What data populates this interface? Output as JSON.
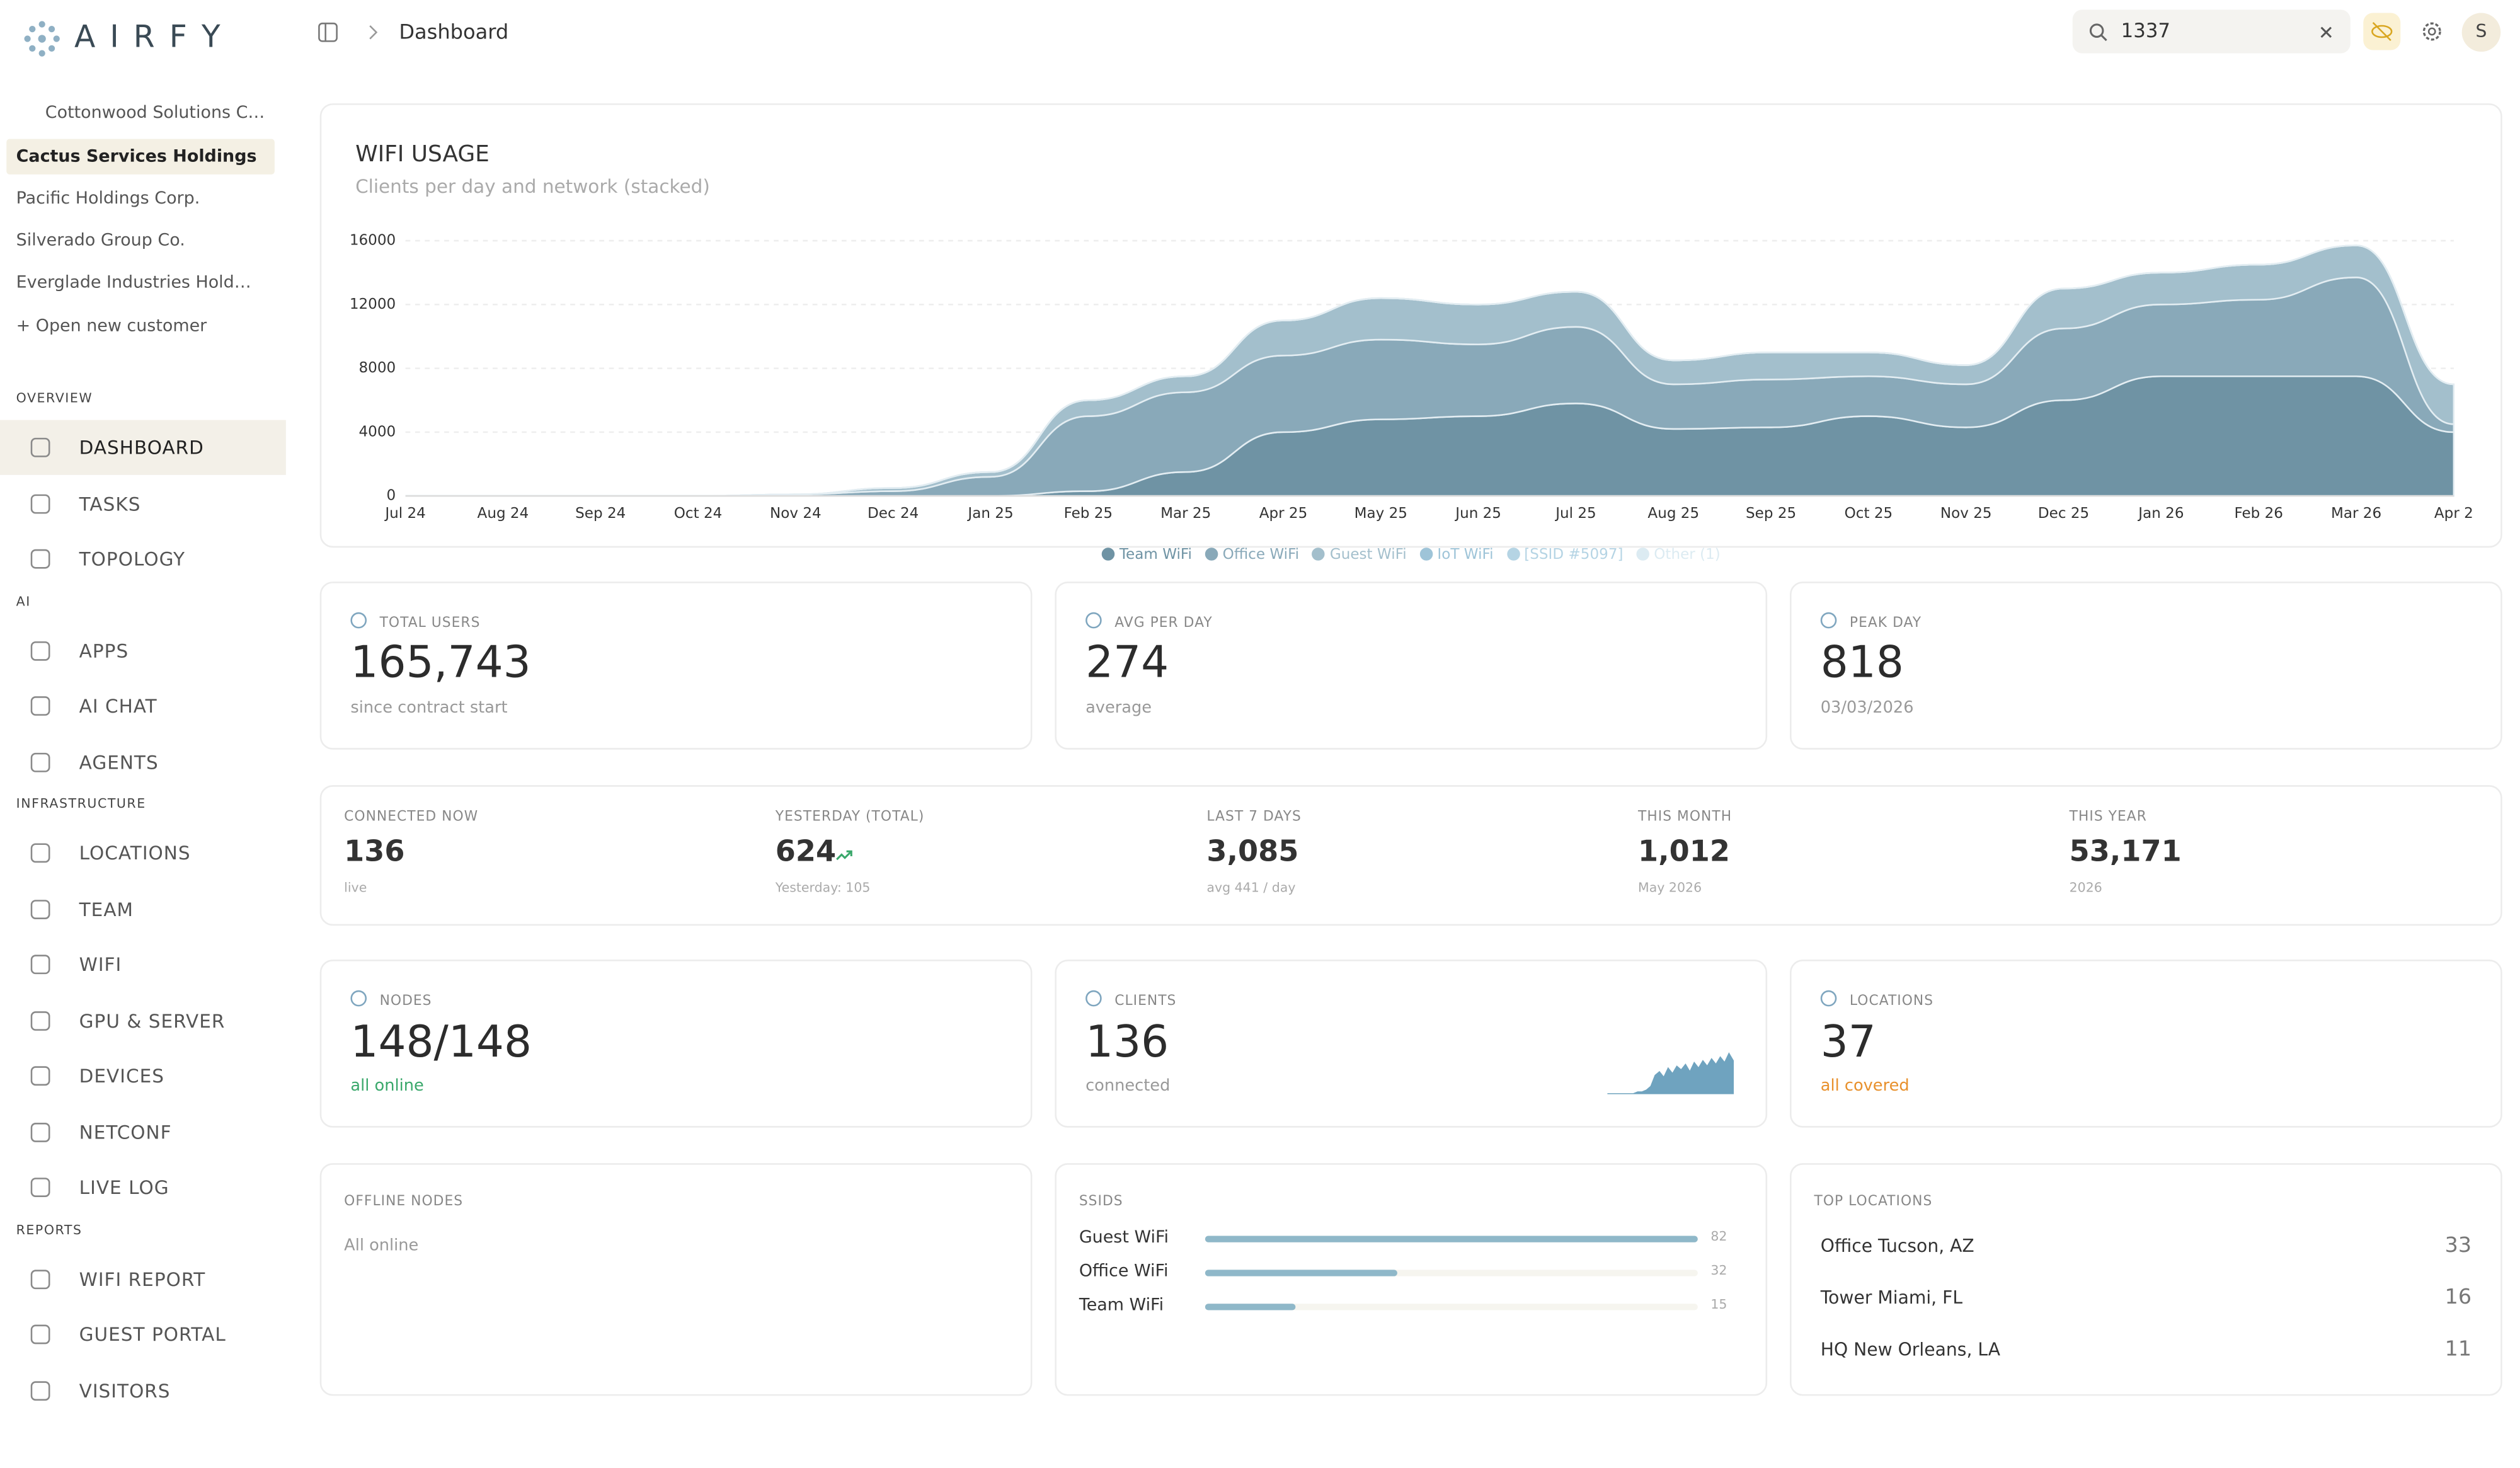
{
  "sidebar": {
    "brand": "AIRFY",
    "customers": [
      "Cottonwood Solutions C…",
      "Cactus Services Holdings",
      "Pacific Holdings Corp.",
      "Silverado Group Co.",
      "Everglade Industries Hold…"
    ],
    "open_customer": "+ Open new customer",
    "sections": [
      {
        "title": "OVERVIEW",
        "items": [
          "DASHBOARD",
          "TASKS",
          "TOPOLOGY"
        ]
      },
      {
        "title": "AI",
        "items": [
          "APPS",
          "AI CHAT",
          "AGENTS"
        ]
      },
      {
        "title": "INFRASTRUCTURE",
        "items": [
          "LOCATIONS",
          "TEAM",
          "WIFI",
          "GPU & SERVER",
          "DEVICES",
          "NETCONF",
          "LIVE LOG"
        ]
      },
      {
        "title": "REPORTS",
        "items": [
          "WIFI REPORT",
          "GUEST PORTAL",
          "VISITORS"
        ]
      }
    ]
  },
  "header": {
    "breadcrumb": "Dashboard",
    "search": "1337",
    "avatar": "S"
  },
  "chart_data": {
    "type": "area",
    "title": "WIFI USAGE",
    "subtitle": "Clients per day and network (stacked)",
    "categories": [
      "Jul 24",
      "Aug 24",
      "Sep 24",
      "Oct 24",
      "Nov 24",
      "Dec 24",
      "Jan 25",
      "Feb 25",
      "Mar 25",
      "Apr 25",
      "May 25",
      "Jun 25",
      "Jul 25",
      "Aug 25",
      "Sep 25",
      "Oct 25",
      "Nov 25",
      "Dec 25",
      "Jan 26",
      "Feb 26",
      "Mar 26",
      "Apr 2"
    ],
    "series": [
      {
        "name": "Team WiFi",
        "color": "#6f93a4",
        "values": [
          0,
          0,
          0,
          0,
          0,
          0,
          0,
          300,
          1500,
          4000,
          4800,
          5000,
          5800,
          4200,
          4300,
          5000,
          4300,
          6000,
          7500,
          7500,
          7500,
          4000
        ]
      },
      {
        "name": "Office WiFi",
        "color": "#89a9b9",
        "values": [
          0,
          0,
          0,
          0,
          100,
          300,
          1200,
          4700,
          5000,
          4800,
          5000,
          4500,
          4800,
          2800,
          3000,
          2500,
          2700,
          4500,
          4500,
          4800,
          6200,
          500
        ]
      },
      {
        "name": "Guest WiFi",
        "color": "#a3bfcc",
        "values": [
          0,
          0,
          0,
          0,
          0,
          200,
          300,
          1000,
          1000,
          2200,
          2600,
          2500,
          2200,
          1500,
          1700,
          1500,
          1200,
          2500,
          2000,
          2200,
          2000,
          2500
        ]
      },
      {
        "name": "IoT WiFi",
        "color": "#9ec4d8",
        "values": [
          0,
          0,
          0,
          0,
          0,
          0,
          0,
          0,
          0,
          0,
          0,
          0,
          0,
          0,
          0,
          0,
          0,
          0,
          0,
          0,
          0,
          0
        ]
      },
      {
        "name": "[SSID #5097]",
        "color": "#b5d4e4",
        "values": [
          0,
          0,
          0,
          0,
          0,
          0,
          0,
          0,
          0,
          0,
          0,
          0,
          0,
          0,
          0,
          0,
          0,
          0,
          0,
          0,
          0,
          0
        ]
      },
      {
        "name": "Other (1)",
        "color": "#dcebf2",
        "values": [
          0,
          0,
          0,
          0,
          0,
          0,
          0,
          0,
          0,
          0,
          0,
          0,
          0,
          0,
          0,
          0,
          0,
          0,
          0,
          0,
          0,
          0
        ]
      }
    ],
    "ylim": [
      0,
      16000
    ],
    "yticks": [
      0,
      4000,
      8000,
      12000,
      16000
    ],
    "grid": true,
    "stacked": true,
    "legend": "bottom"
  },
  "summary": [
    {
      "label": "TOTAL USERS",
      "value": "165,743",
      "sub": "since contract start"
    },
    {
      "label": "AVG PER DAY",
      "value": "274",
      "sub": "average"
    },
    {
      "label": "PEAK DAY",
      "value": "818",
      "sub": "03/03/2026"
    }
  ],
  "period": [
    {
      "label": "CONNECTED NOW",
      "value": "136",
      "sub": "live"
    },
    {
      "label": "YESTERDAY (TOTAL)",
      "value": "624",
      "sub": "Yesterday: 105"
    },
    {
      "label": "LAST 7 DAYS",
      "value": "3,085",
      "sub": "avg 441 / day"
    },
    {
      "label": "THIS MONTH",
      "value": "1,012",
      "sub": "May 2026"
    },
    {
      "label": "THIS YEAR",
      "value": "53,171",
      "sub": "2026"
    }
  ],
  "status": [
    {
      "label": "NODES",
      "value": "148/148",
      "sub": "all online",
      "color": "#3aa86b"
    },
    {
      "label": "CLIENTS",
      "value": "136",
      "sub": "connected",
      "color": "#999999"
    },
    {
      "label": "LOCATIONS",
      "value": "37",
      "sub": "all covered",
      "color": "#e8912d"
    }
  ],
  "clients_sparkline": [
    0,
    0,
    0,
    0,
    0,
    0,
    0,
    1,
    1,
    2,
    4,
    10,
    12,
    9,
    14,
    11,
    15,
    13,
    16,
    12,
    17,
    14,
    18,
    15,
    19,
    16,
    20,
    17,
    22,
    18
  ],
  "offline_nodes": {
    "title": "OFFLINE NODES",
    "text": "All online"
  },
  "ssids": {
    "title": "SSIDS",
    "items": [
      {
        "name": "Guest WiFi",
        "value": 82
      },
      {
        "name": "Office WiFi",
        "value": 32
      },
      {
        "name": "Team WiFi",
        "value": 15
      }
    ]
  },
  "top_locations": {
    "title": "TOP LOCATIONS",
    "items": [
      {
        "name": "Office Tucson, AZ",
        "value": 33
      },
      {
        "name": "Tower Miami, FL",
        "value": 16
      },
      {
        "name": "HQ New Orleans, LA",
        "value": 11
      }
    ]
  }
}
